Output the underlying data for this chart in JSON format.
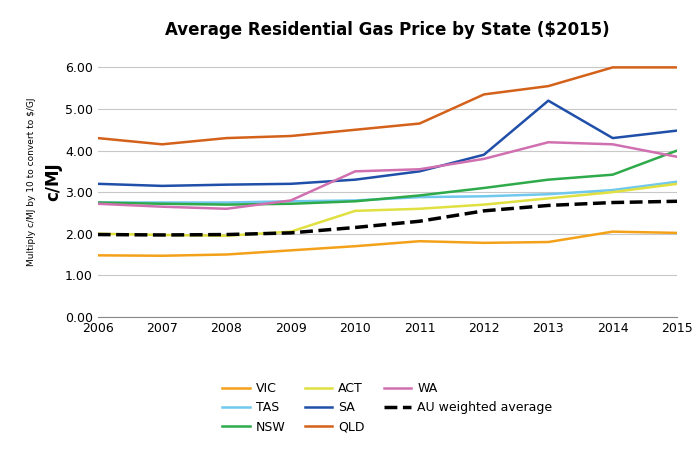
{
  "title": "Average Residential Gas Price by State ($2015)",
  "ylabel": "c/MJ",
  "ylabel_secondary": "Multiply c/MJ by 10 to convert to $/GJ",
  "years": [
    2006,
    2007,
    2008,
    2009,
    2010,
    2011,
    2012,
    2013,
    2014,
    2015
  ],
  "series": {
    "VIC": {
      "color": "#F4A11A",
      "linestyle": "-",
      "linewidth": 1.8,
      "values": [
        1.48,
        1.47,
        1.5,
        1.6,
        1.7,
        1.82,
        1.78,
        1.8,
        2.05,
        2.02
      ]
    },
    "TAS": {
      "color": "#70C8EE",
      "linestyle": "-",
      "linewidth": 1.8,
      "values": [
        2.75,
        2.75,
        2.75,
        2.78,
        2.8,
        2.88,
        2.9,
        2.95,
        3.05,
        3.25
      ]
    },
    "NSW": {
      "color": "#2EAA4A",
      "linestyle": "-",
      "linewidth": 1.8,
      "values": [
        2.75,
        2.72,
        2.7,
        2.72,
        2.78,
        2.92,
        3.1,
        3.3,
        3.42,
        4.0
      ]
    },
    "ACT": {
      "color": "#E0E040",
      "linestyle": "-",
      "linewidth": 1.8,
      "values": [
        2.0,
        1.97,
        1.95,
        2.05,
        2.55,
        2.6,
        2.7,
        2.85,
        3.0,
        3.2
      ]
    },
    "SA": {
      "color": "#1F4FA8",
      "linestyle": "-",
      "linewidth": 1.8,
      "values": [
        3.2,
        3.15,
        3.18,
        3.2,
        3.3,
        3.5,
        3.9,
        5.2,
        4.3,
        4.48
      ]
    },
    "QLD": {
      "color": "#D4611A",
      "linestyle": "-",
      "linewidth": 1.8,
      "values": [
        4.3,
        4.15,
        4.3,
        4.35,
        4.5,
        4.65,
        5.35,
        5.55,
        6.0,
        6.0
      ]
    },
    "WA": {
      "color": "#D070B0",
      "linestyle": "-",
      "linewidth": 1.8,
      "values": [
        2.72,
        2.65,
        2.6,
        2.8,
        3.5,
        3.55,
        3.8,
        4.2,
        4.15,
        3.85
      ]
    },
    "AU weighted average": {
      "color": "#000000",
      "linestyle": "--",
      "linewidth": 2.5,
      "values": [
        1.98,
        1.97,
        1.98,
        2.02,
        2.15,
        2.3,
        2.55,
        2.68,
        2.75,
        2.78
      ]
    }
  },
  "ylim": [
    0.0,
    6.5
  ],
  "yticks": [
    0.0,
    1.0,
    2.0,
    3.0,
    4.0,
    5.0,
    6.0
  ],
  "grid_color": "#C8C8C8",
  "legend_rows": [
    [
      "VIC",
      "TAS",
      "NSW"
    ],
    [
      "ACT",
      "SA",
      "QLD"
    ],
    [
      "WA",
      "AU weighted average"
    ]
  ]
}
